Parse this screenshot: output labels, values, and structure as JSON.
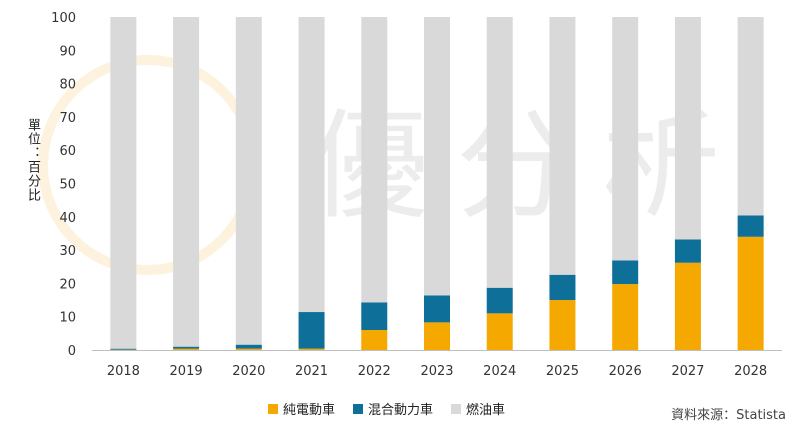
{
  "chart_data": {
    "type": "bar",
    "stacked": true,
    "categories": [
      "2018",
      "2019",
      "2020",
      "2021",
      "2022",
      "2023",
      "2024",
      "2025",
      "2026",
      "2027",
      "2028"
    ],
    "series": [
      {
        "name": "純電動車",
        "color": "#F5A800",
        "values": [
          0.1,
          0.4,
          0.4,
          0.4,
          6.0,
          8.3,
          11.0,
          15.0,
          19.8,
          26.2,
          34.0
        ]
      },
      {
        "name": "混合動力車",
        "color": "#0E6F98",
        "values": [
          0.3,
          0.6,
          1.2,
          11.0,
          8.3,
          8.1,
          7.7,
          7.6,
          7.1,
          7.0,
          6.4
        ]
      },
      {
        "name": "燃油車",
        "color": "#D9D9D9",
        "values": [
          99.6,
          99.0,
          98.4,
          88.6,
          85.7,
          83.6,
          81.3,
          77.4,
          73.1,
          66.8,
          59.6
        ]
      }
    ],
    "ylabel": "單位：百分比",
    "ylim": [
      0,
      100
    ],
    "yticks": [
      0,
      10,
      20,
      30,
      40,
      50,
      60,
      70,
      80,
      90,
      100
    ],
    "legend_position": "bottom"
  },
  "source": "資料來源：Statista",
  "watermark": "優分析"
}
